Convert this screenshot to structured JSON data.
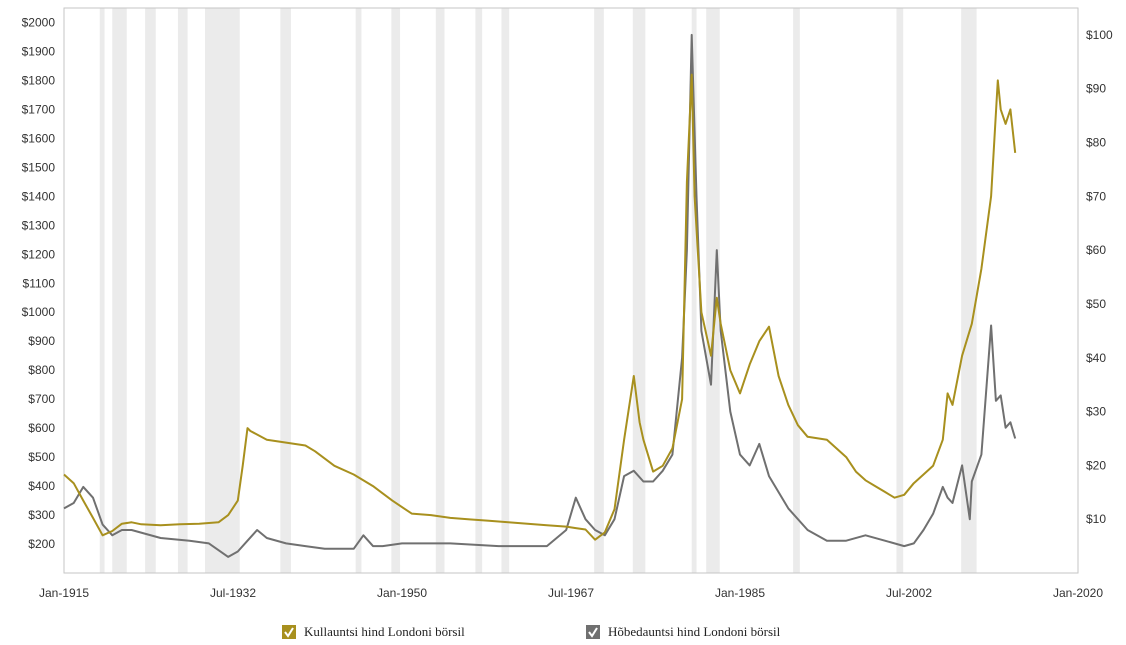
{
  "chart_data": {
    "type": "line",
    "xlabel": "",
    "ylabel_left": "",
    "ylabel_right": "",
    "x_ticks": [
      "Jan-1915",
      "Jul-1932",
      "Jan-1950",
      "Jul-1967",
      "Jan-1985",
      "Jul-2002",
      "Jan-2020"
    ],
    "x_range": [
      1915.0,
      2020.0
    ],
    "y_left_ticks": [
      "$200",
      "$300",
      "$400",
      "$500",
      "$600",
      "$700",
      "$800",
      "$900",
      "$1000",
      "$1100",
      "$1200",
      "$1300",
      "$1400",
      "$1500",
      "$1600",
      "$1700",
      "$1800",
      "$1900",
      "$2000"
    ],
    "y_left_range": [
      100,
      2050
    ],
    "y_right_ticks": [
      "$10",
      "$20",
      "$30",
      "$40",
      "$50",
      "$60",
      "$70",
      "$80",
      "$90",
      "$100"
    ],
    "y_right_range": [
      0,
      105
    ],
    "grid": false,
    "legend_position": "bottom",
    "recession_bands": [
      [
        1918.7,
        1919.2
      ],
      [
        1920.0,
        1921.5
      ],
      [
        1923.4,
        1924.5
      ],
      [
        1926.8,
        1927.8
      ],
      [
        1929.6,
        1933.2
      ],
      [
        1937.4,
        1938.5
      ],
      [
        1945.2,
        1945.8
      ],
      [
        1948.9,
        1949.8
      ],
      [
        1953.5,
        1954.4
      ],
      [
        1957.6,
        1958.3
      ],
      [
        1960.3,
        1961.1
      ],
      [
        1969.9,
        1970.9
      ],
      [
        1973.9,
        1975.2
      ],
      [
        1980.0,
        1980.5
      ],
      [
        1981.5,
        1982.9
      ],
      [
        1990.5,
        1991.2
      ],
      [
        2001.2,
        2001.9
      ],
      [
        2007.9,
        2009.5
      ]
    ],
    "series": [
      {
        "name": "Kullauntsi hind Londoni börsil",
        "axis": "left",
        "color": "#a8901e",
        "x": [
          1915,
          1916,
          1917,
          1918,
          1919,
          1920,
          1921,
          1922,
          1923,
          1925,
          1927,
          1929,
          1931,
          1932,
          1933,
          1933.5,
          1934,
          1934.3,
          1936,
          1938,
          1940,
          1941,
          1943,
          1945,
          1947,
          1949,
          1951,
          1953,
          1955,
          1957,
          1959,
          1961,
          1963,
          1965,
          1967,
          1968,
          1969,
          1970,
          1971,
          1972,
          1973,
          1974,
          1974.6,
          1975,
          1976,
          1977,
          1978,
          1979,
          1979.5,
          1980,
          1980.3,
          1981,
          1982,
          1982.6,
          1983,
          1984,
          1985,
          1986,
          1987,
          1988,
          1989,
          1990,
          1991,
          1992,
          1994,
          1996,
          1997,
          1998,
          1999,
          2000,
          2001,
          2002,
          2003,
          2004,
          2005,
          2006,
          2006.5,
          2007,
          2008,
          2009,
          2010,
          2011,
          2011.7,
          2012,
          2012.5,
          2013,
          2013.5
        ],
        "values": [
          440,
          410,
          350,
          290,
          230,
          245,
          270,
          275,
          268,
          265,
          268,
          270,
          275,
          300,
          350,
          470,
          600,
          590,
          560,
          550,
          540,
          520,
          470,
          440,
          400,
          350,
          305,
          300,
          290,
          285,
          280,
          275,
          270,
          265,
          260,
          255,
          250,
          215,
          240,
          320,
          560,
          780,
          620,
          560,
          450,
          470,
          530,
          700,
          1450,
          1820,
          1400,
          1000,
          850,
          1050,
          960,
          800,
          720,
          820,
          900,
          950,
          780,
          680,
          610,
          570,
          560,
          500,
          450,
          420,
          400,
          380,
          360,
          370,
          410,
          440,
          470,
          560,
          720,
          680,
          850,
          960,
          1150,
          1400,
          1800,
          1700,
          1650,
          1700,
          1550
        ]
      },
      {
        "name": "Hõbedauntsi hind Londoni börsil",
        "axis": "right",
        "color": "#707070",
        "x": [
          1915,
          1916,
          1917,
          1918,
          1919,
          1920,
          1921,
          1922,
          1925,
          1928,
          1930,
          1932,
          1933,
          1934,
          1935,
          1936,
          1938,
          1940,
          1942,
          1945,
          1946,
          1947,
          1948,
          1950,
          1955,
          1960,
          1965,
          1967,
          1968,
          1969,
          1970,
          1971,
          1972,
          1973,
          1974,
          1975,
          1976,
          1977,
          1978,
          1979,
          1979.5,
          1980,
          1980.5,
          1981,
          1982,
          1982.6,
          1983,
          1984,
          1985,
          1986,
          1987,
          1988,
          1990,
          1992,
          1994,
          1996,
          1998,
          2000,
          2002,
          2003,
          2004,
          2005,
          2006,
          2006.5,
          2007,
          2008,
          2008.8,
          2009,
          2010,
          2011,
          2011.5,
          2012,
          2012.5,
          2013,
          2013.5
        ],
        "values": [
          12,
          13,
          16,
          14,
          9,
          7,
          8,
          8,
          6.5,
          6,
          5.5,
          3,
          4,
          6,
          8,
          6.5,
          5.5,
          5,
          4.5,
          4.5,
          7,
          5,
          5,
          5.5,
          5.5,
          5,
          5,
          8,
          14,
          10,
          8,
          7,
          10,
          18,
          19,
          17,
          17,
          19,
          22,
          40,
          60,
          100,
          70,
          45,
          35,
          60,
          45,
          30,
          22,
          20,
          24,
          18,
          12,
          8,
          6,
          6,
          7,
          6,
          5,
          5.5,
          8,
          11,
          16,
          14,
          13,
          20,
          10,
          17,
          22,
          46,
          32,
          33,
          27,
          28,
          25
        ]
      }
    ]
  }
}
